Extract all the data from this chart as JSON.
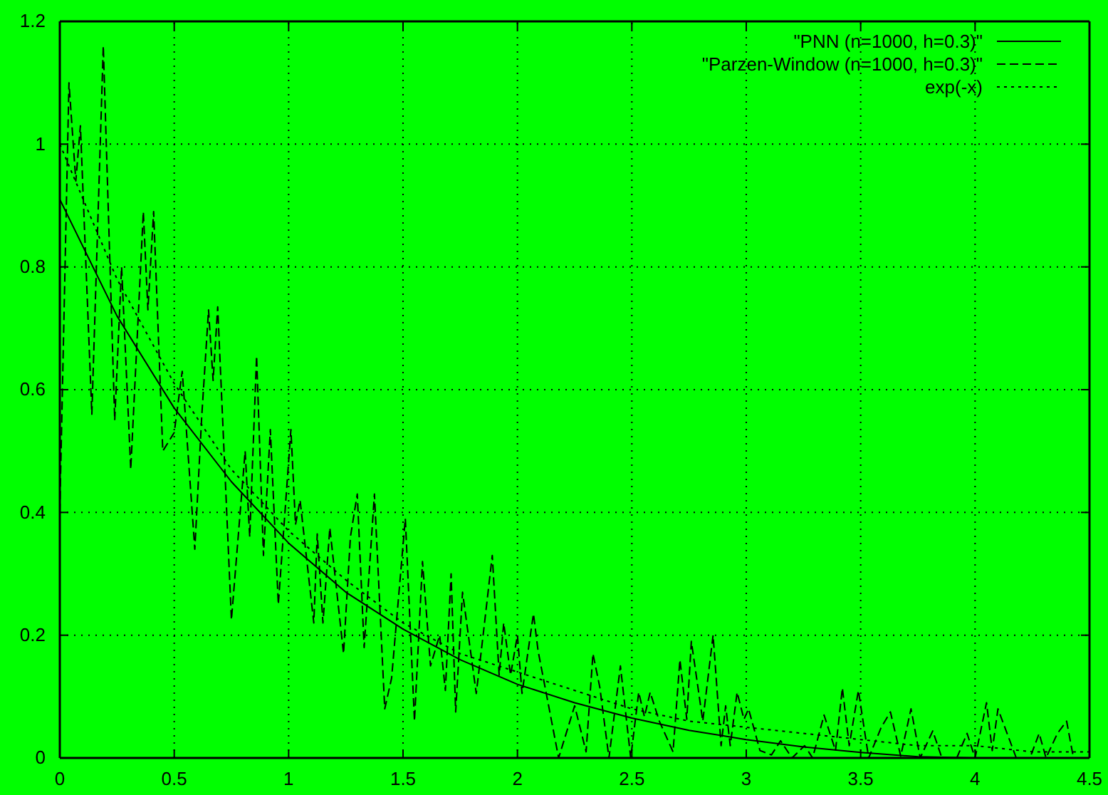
{
  "chart_data": {
    "type": "line",
    "xlim": [
      0,
      4.5
    ],
    "ylim": [
      0,
      1.2
    ],
    "xticks": [
      0,
      0.5,
      1,
      1.5,
      2,
      2.5,
      3,
      3.5,
      4,
      4.5
    ],
    "yticks": [
      0,
      0.2,
      0.4,
      0.6,
      0.8,
      1,
      1.2
    ],
    "grid": true,
    "legend": "top right",
    "series": [
      {
        "name": "\"PNN (n=1000, h=0.3)\"",
        "color": "#000000",
        "line_style": "solid",
        "x": [
          0,
          0.25,
          0.5,
          0.75,
          1,
          1.25,
          1.5,
          1.75,
          2,
          2.25,
          2.5,
          2.75,
          3,
          3.25,
          3.5,
          3.75,
          4
        ],
        "values": [
          0.91,
          0.72,
          0.57,
          0.45,
          0.35,
          0.27,
          0.21,
          0.16,
          0.12,
          0.09,
          0.065,
          0.045,
          0.03,
          0.018,
          0.009,
          0.002,
          0
        ]
      },
      {
        "name": "\"Parzen-Window (n=1000, h=0.3)\"",
        "color": "#000000",
        "line_style": "dashed",
        "x": [
          0,
          0.04,
          0.07,
          0.09,
          0.14,
          0.19,
          0.24,
          0.27,
          0.31,
          0.365,
          0.385,
          0.41,
          0.45,
          0.5,
          0.535,
          0.59,
          0.62,
          0.65,
          0.67,
          0.69,
          0.75,
          0.81,
          0.83,
          0.86,
          0.89,
          0.92,
          0.955,
          1.01,
          1.03,
          1.05,
          1.11,
          1.125,
          1.15,
          1.18,
          1.24,
          1.27,
          1.3,
          1.33,
          1.375,
          1.42,
          1.45,
          1.51,
          1.55,
          1.585,
          1.62,
          1.66,
          1.685,
          1.71,
          1.73,
          1.76,
          1.82,
          1.85,
          1.89,
          1.92,
          1.94,
          1.97,
          2,
          2.02,
          2.07,
          2.09,
          2.18,
          2.25,
          2.3,
          2.33,
          2.36,
          2.4,
          2.45,
          2.495,
          2.53,
          2.555,
          2.58,
          2.62,
          2.68,
          2.71,
          2.74,
          2.76,
          2.81,
          2.855,
          2.89,
          2.91,
          2.93,
          2.96,
          2.99,
          3.01,
          3.06,
          3.11,
          3.15,
          3.2,
          3.255,
          3.29,
          3.34,
          3.39,
          3.42,
          3.45,
          3.49,
          3.535,
          3.59,
          3.63,
          3.675,
          3.72,
          3.76,
          3.815,
          3.855,
          3.92,
          3.965,
          4,
          4.05,
          4.075,
          4.1,
          4.14,
          4.18,
          4.24,
          4.28,
          4.31,
          4.36,
          4.4,
          4.43
        ],
        "values": [
          0.4,
          1.1,
          0.94,
          1.03,
          0.56,
          1.16,
          0.55,
          0.8,
          0.47,
          0.89,
          0.73,
          0.89,
          0.5,
          0.53,
          0.63,
          0.34,
          0.555,
          0.73,
          0.615,
          0.735,
          0.225,
          0.5,
          0.36,
          0.655,
          0.33,
          0.535,
          0.25,
          0.535,
          0.38,
          0.42,
          0.22,
          0.365,
          0.22,
          0.375,
          0.17,
          0.36,
          0.43,
          0.18,
          0.43,
          0.08,
          0.13,
          0.39,
          0.06,
          0.32,
          0.15,
          0.2,
          0.11,
          0.3,
          0.075,
          0.27,
          0.105,
          0.2,
          0.33,
          0.135,
          0.22,
          0.135,
          0.2,
          0.105,
          0.235,
          0.175,
          0,
          0.085,
          0.01,
          0.17,
          0.115,
          0,
          0.15,
          0,
          0.107,
          0.067,
          0.107,
          0.06,
          0.01,
          0.16,
          0.063,
          0.19,
          0.06,
          0.2,
          0.02,
          0.085,
          0.02,
          0.107,
          0.063,
          0.08,
          0.012,
          0.005,
          0.028,
          0,
          0.02,
          0,
          0.07,
          0.012,
          0.114,
          0.02,
          0.11,
          0,
          0.05,
          0.075,
          0.003,
          0.08,
          0,
          0.044,
          0,
          0,
          0.04,
          0,
          0.09,
          0.012,
          0.08,
          0.04,
          0,
          0,
          0.04,
          0,
          0.04,
          0.06,
          0
        ]
      },
      {
        "name": "exp(-x)",
        "color": "#000000",
        "line_style": "dotted",
        "x": [
          0,
          0.25,
          0.5,
          0.75,
          1,
          1.25,
          1.5,
          1.75,
          2,
          2.25,
          2.5,
          2.75,
          3,
          3.25,
          3.5,
          3.75,
          4,
          4.25,
          4.5
        ],
        "values": [
          1,
          0.78,
          0.61,
          0.47,
          0.37,
          0.29,
          0.22,
          0.17,
          0.14,
          0.11,
          0.08,
          0.06,
          0.05,
          0.04,
          0.03,
          0.02,
          0.02,
          0.01,
          0.01
        ]
      }
    ]
  }
}
